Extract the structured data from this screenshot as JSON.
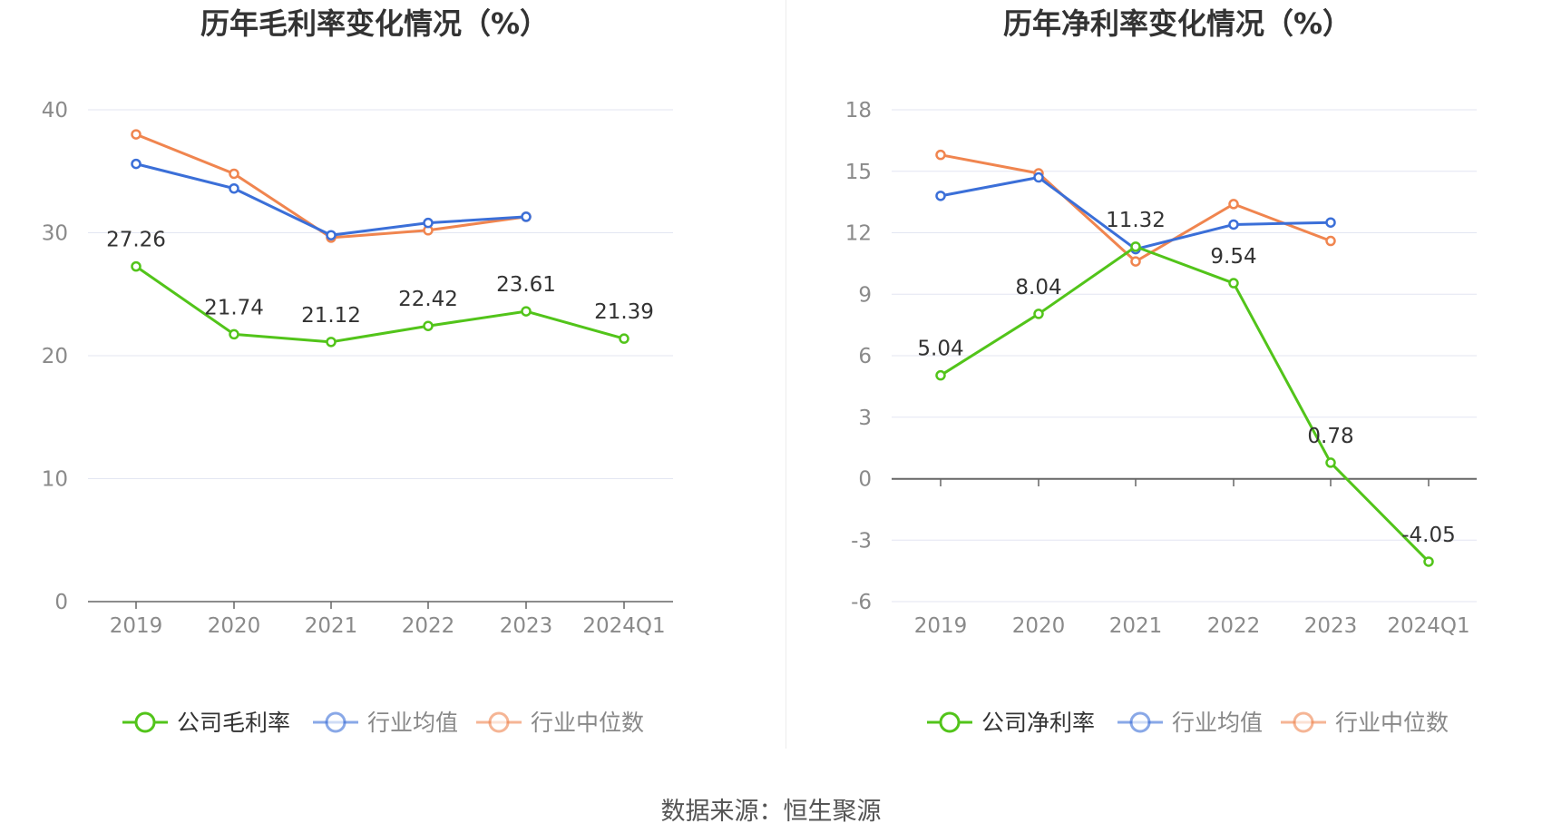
{
  "source": "数据来源：恒生聚源",
  "chart_data": [
    {
      "type": "line",
      "title": "历年毛利率变化情况（%）",
      "categories": [
        "2019",
        "2020",
        "2021",
        "2022",
        "2023",
        "2024Q1"
      ],
      "ylim": [
        0,
        40
      ],
      "yticks": [
        "0",
        "10",
        "20",
        "30",
        "40"
      ],
      "grid": true,
      "legend": "bottom",
      "series": [
        {
          "name": "公司毛利率",
          "color": "#52c41a",
          "values": [
            27.26,
            21.74,
            21.12,
            22.42,
            23.61,
            21.39
          ],
          "labels": [
            "27.26",
            "21.74",
            "21.12",
            "22.42",
            "23.61",
            "21.39"
          ]
        },
        {
          "name": "行业均值",
          "color": "#3b6fd8",
          "values": [
            35.6,
            33.6,
            29.8,
            30.8,
            31.3,
            null
          ]
        },
        {
          "name": "行业中位数",
          "color": "#f0854f",
          "values": [
            38.0,
            34.8,
            29.6,
            30.2,
            31.3,
            null
          ]
        }
      ]
    },
    {
      "type": "line",
      "title": "历年净利率变化情况（%）",
      "categories": [
        "2019",
        "2020",
        "2021",
        "2022",
        "2023",
        "2024Q1"
      ],
      "ylim": [
        -6,
        18
      ],
      "yticks": [
        "-6",
        "-3",
        "0",
        "3",
        "6",
        "9",
        "12",
        "15",
        "18"
      ],
      "grid": true,
      "legend": "bottom",
      "series": [
        {
          "name": "公司净利率",
          "color": "#52c41a",
          "values": [
            5.04,
            8.04,
            11.32,
            9.54,
            0.78,
            -4.05
          ],
          "labels": [
            "5.04",
            "8.04",
            "11.32",
            "9.54",
            "0.78",
            "-4.05"
          ]
        },
        {
          "name": "行业均值",
          "color": "#3b6fd8",
          "values": [
            13.8,
            14.7,
            11.2,
            12.4,
            12.5,
            null
          ]
        },
        {
          "name": "行业中位数",
          "color": "#f0854f",
          "values": [
            15.8,
            14.9,
            10.6,
            13.4,
            11.6,
            null
          ]
        }
      ]
    }
  ]
}
